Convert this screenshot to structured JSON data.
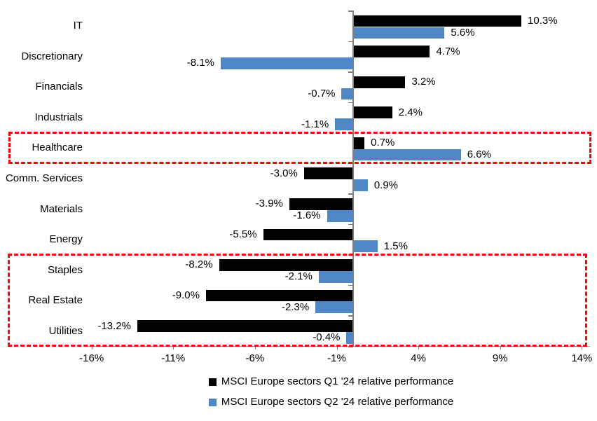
{
  "chart_data": {
    "type": "bar",
    "orientation": "horizontal",
    "title": "",
    "categories": [
      "IT",
      "Discretionary",
      "Financials",
      "Industrials",
      "Healthcare",
      "Comm. Services",
      "Materials",
      "Energy",
      "Staples",
      "Real Estate",
      "Utilities"
    ],
    "series": [
      {
        "name": "MSCI Europe sectors Q1 '24 relative performance",
        "color": "#000000",
        "values": [
          10.3,
          4.7,
          3.2,
          2.4,
          0.7,
          -3.0,
          -3.9,
          -5.5,
          -8.2,
          -9.0,
          -13.2
        ]
      },
      {
        "name": "MSCI Europe sectors Q2 '24 relative performance",
        "color": "#4f86c6",
        "values": [
          5.6,
          -8.1,
          -0.7,
          -1.1,
          6.6,
          0.9,
          -1.6,
          1.5,
          -2.1,
          -2.3,
          -0.4
        ]
      }
    ],
    "data_labels": true,
    "value_decimals": 1,
    "value_suffix": "%",
    "xlim": [
      -16.5,
      14.5
    ],
    "x_ticks": [
      {
        "value": -16,
        "label": "-16%"
      },
      {
        "value": -11,
        "label": "-11%"
      },
      {
        "value": -6,
        "label": "-6%"
      },
      {
        "value": -1,
        "label": "-1%"
      },
      {
        "value": 4,
        "label": "4%"
      },
      {
        "value": 9,
        "label": "9%"
      },
      {
        "value": 14,
        "label": "14%"
      }
    ],
    "grid": false,
    "legend_position": "bottom",
    "axis_color": "#7f7f7f",
    "highlights": [
      {
        "name": "highlight-box-healthcare",
        "categories": [
          "Healthcare"
        ],
        "color": "#fb0606",
        "style": "dashed"
      },
      {
        "name": "highlight-box-defensive-sectors",
        "categories": [
          "Staples",
          "Real Estate",
          "Utilities"
        ],
        "color": "#fb0606",
        "style": "dashed"
      }
    ]
  }
}
